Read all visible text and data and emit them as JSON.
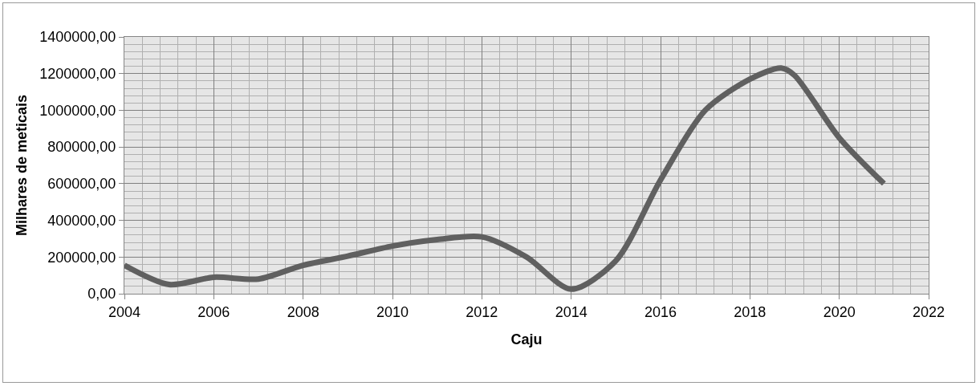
{
  "chart_data": {
    "type": "line",
    "xlabel": "Caju",
    "ylabel": "Milhares de meticais",
    "x": [
      2004,
      2005,
      2006,
      2007,
      2008,
      2009,
      2010,
      2011,
      2012,
      2013,
      2014,
      2015,
      2016,
      2017,
      2018,
      2018.7,
      2019,
      2020,
      2021
    ],
    "series": [
      {
        "color": "#606060",
        "values": [
          155000,
          50000,
          90000,
          80000,
          155000,
          205000,
          260000,
          295000,
          310000,
          200000,
          25000,
          180000,
          620000,
          1000000,
          1170000,
          1230000,
          1190000,
          850000,
          600000
        ]
      }
    ],
    "xlim": [
      2004,
      2022
    ],
    "xticks": [
      2004,
      2006,
      2008,
      2010,
      2012,
      2014,
      2016,
      2018,
      2020,
      2022
    ],
    "ylim": [
      0,
      1400000
    ],
    "yticks": [
      {
        "value": 0,
        "label": "0,00"
      },
      {
        "value": 200000,
        "label": "200000,00"
      },
      {
        "value": 400000,
        "label": "400000,00"
      },
      {
        "value": 600000,
        "label": "600000,00"
      },
      {
        "value": 800000,
        "label": "800000,00"
      },
      {
        "value": 1000000,
        "label": "1000000,00"
      },
      {
        "value": 1200000,
        "label": "1200000,00"
      },
      {
        "value": 1400000,
        "label": "1400000,00"
      }
    ],
    "grid": true,
    "legend": false,
    "marker": "none",
    "line_style": "solid"
  }
}
